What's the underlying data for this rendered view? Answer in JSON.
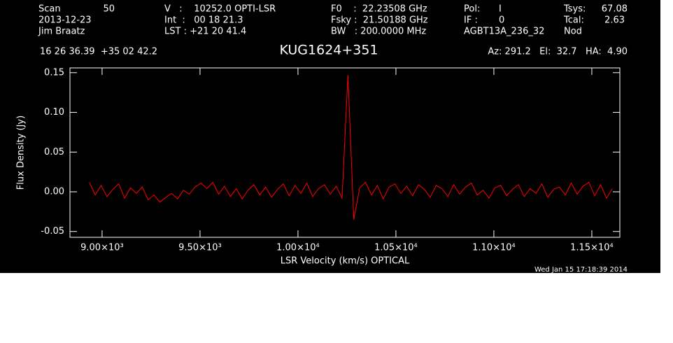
{
  "chart_data": {
    "type": "line",
    "title": "KUG1624+351",
    "xlabel": "LSR Velocity (km/s) OPTICAL",
    "ylabel": "Flux Density (Jy)",
    "header": {
      "scan_label": "Scan",
      "scan": "50",
      "date": "2013-12-23",
      "observer": "Jim Braatz",
      "velocity": "V   :    10252.0 OPTI-LSR",
      "integration": "Int  :   00 18 21.3",
      "lst": "LST : +21 20 41.4",
      "f0": "F0    :  22.23508 GHz",
      "fsky": "Fsky :  21.50188 GHz",
      "bw": "BW   : 200.0000 MHz",
      "pol_label": "Pol:",
      "pol": "I",
      "if_label": "IF :",
      "if": "0",
      "project": "AGBT13A_236_32",
      "tsys_label": "Tsys:",
      "tsys": "67.08",
      "tcal_label": "Tcal:",
      "tcal": "2.63",
      "proc": "Nod",
      "coords": "16 26 36.39  +35 02 42.2",
      "azel": "Az: 291.2   El:  32.7   HA:  4.90"
    },
    "footer": "Wed Jan 15 17:18:39 2014",
    "color": "#ff0000",
    "xlim": [
      8836,
      11643
    ],
    "ylim": [
      -0.0573,
      0.156
    ],
    "xticks": [
      {
        "value": 9000,
        "label": "9.00×10³"
      },
      {
        "value": 9500,
        "label": "9.50×10³"
      },
      {
        "value": 10000,
        "label": "1.00×10⁴"
      },
      {
        "value": 10500,
        "label": "1.05×10⁴"
      },
      {
        "value": 11000,
        "label": "1.10×10⁴"
      },
      {
        "value": 11500,
        "label": "1.15×10⁴"
      }
    ],
    "yticks": [
      {
        "value": -0.05,
        "label": "-0.05"
      },
      {
        "value": 0,
        "label": "0.00"
      },
      0.05,
      {
        "value": 0.1,
        "label": "0.10"
      },
      0.15
    ],
    "x": [
      8935,
      8965,
      8995,
      9025,
      9055,
      9085,
      9115,
      9145,
      9175,
      9205,
      9235,
      9265,
      9295,
      9325,
      9355,
      9385,
      9415,
      9445,
      9475,
      9505,
      9535,
      9565,
      9595,
      9625,
      9655,
      9685,
      9715,
      9745,
      9775,
      9805,
      9835,
      9865,
      9895,
      9925,
      9955,
      9985,
      10015,
      10045,
      10075,
      10105,
      10135,
      10165,
      10195,
      10225,
      10255,
      10285,
      10315,
      10345,
      10375,
      10405,
      10435,
      10465,
      10495,
      10525,
      10555,
      10585,
      10615,
      10645,
      10675,
      10705,
      10735,
      10765,
      10795,
      10825,
      10855,
      10885,
      10915,
      10945,
      10975,
      11005,
      11035,
      11065,
      11095,
      11125,
      11155,
      11185,
      11215,
      11245,
      11275,
      11305,
      11335,
      11365,
      11395,
      11425,
      11455,
      11485,
      11515,
      11545,
      11575,
      11605
    ],
    "values": [
      0.012,
      -0.004,
      0.008,
      -0.006,
      0.003,
      0.01,
      -0.008,
      0.005,
      -0.002,
      0.006,
      -0.01,
      -0.004,
      -0.013,
      -0.007,
      -0.002,
      -0.009,
      0.002,
      -0.003,
      0.006,
      0.011,
      0.004,
      0.012,
      -0.003,
      0.007,
      -0.006,
      0.004,
      -0.009,
      0.002,
      0.009,
      -0.004,
      0.006,
      -0.007,
      0.003,
      0.01,
      -0.005,
      0.008,
      -0.002,
      0.011,
      -0.006,
      0.004,
      0.009,
      -0.003,
      0.007,
      -0.008,
      0.147,
      -0.035,
      0.005,
      0.012,
      -0.004,
      0.008,
      -0.009,
      0.006,
      0.01,
      -0.002,
      0.007,
      -0.005,
      0.009,
      0.003,
      -0.007,
      0.008,
      0.004,
      -0.006,
      0.009,
      -0.003,
      0.006,
      0.011,
      -0.004,
      0.002,
      -0.008,
      0.005,
      0.008,
      -0.005,
      0.003,
      0.009,
      -0.006,
      0.004,
      -0.002,
      0.01,
      -0.007,
      0.003,
      0.006,
      -0.004,
      0.011,
      -0.003,
      0.007,
      0.012,
      -0.005,
      0.009,
      -0.008,
      0.004
    ]
  }
}
